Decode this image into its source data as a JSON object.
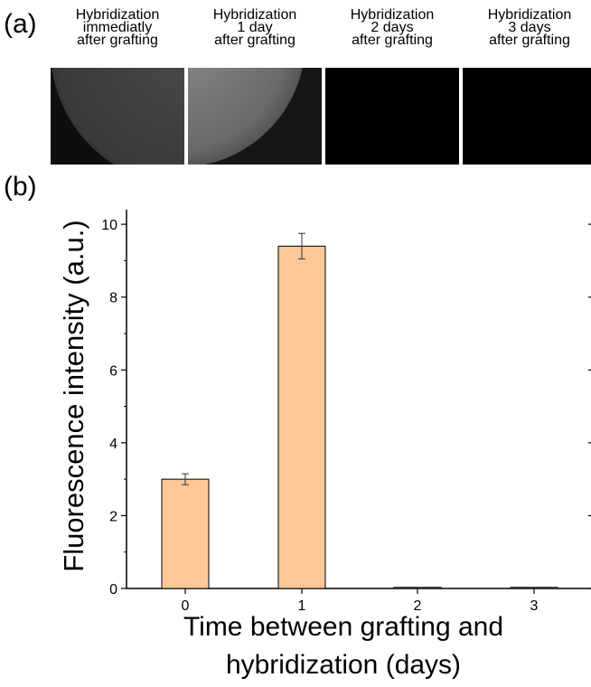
{
  "panels": {
    "a_label": "(a)",
    "b_label": "(b)"
  },
  "images": [
    {
      "caption": "Hybridization\nimmediatly\nafter grafting",
      "content": "bright-disc-edge"
    },
    {
      "caption": "Hybridization\n1 day\nafter grafting",
      "content": "brighter-disc-edge"
    },
    {
      "caption": "Hybridization\n2 days\nafter grafting",
      "content": "dark"
    },
    {
      "caption": "Hybridization\n3 days\nafter grafting",
      "content": "dark"
    }
  ],
  "chart_data": {
    "type": "bar",
    "categories": [
      "0",
      "1",
      "2",
      "3"
    ],
    "values": [
      3.0,
      9.4,
      0.03,
      0.03
    ],
    "errors": [
      0.15,
      0.35,
      0,
      0
    ],
    "xlabel": "Time between grafting and\nhybridization (days)",
    "ylabel": "Fluorescence intensity (a.u.)",
    "ylim": [
      0,
      10.4
    ],
    "yticks": [
      0,
      2,
      4,
      6,
      8,
      10
    ],
    "grid": false,
    "bar_color": "#fdc898",
    "bar_edge_color": "#000000"
  }
}
